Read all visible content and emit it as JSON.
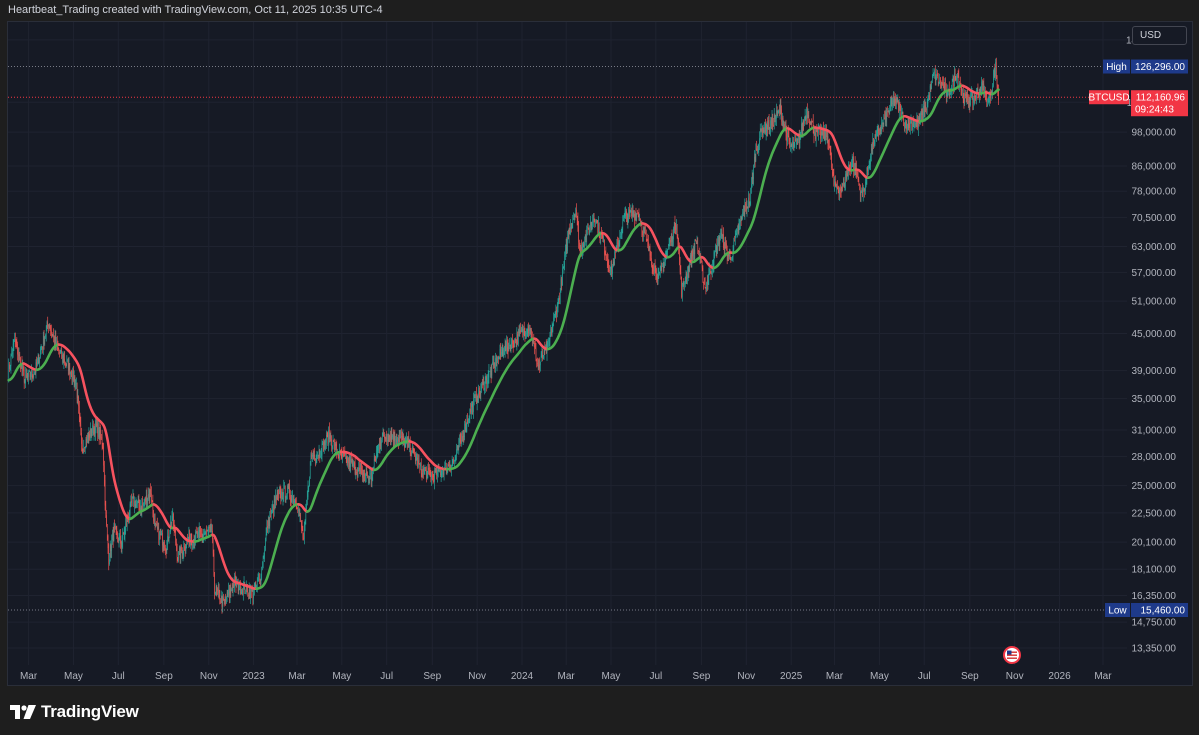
{
  "header": {
    "caption": "Heartbeat_Trading created with TradingView.com, Oct 11, 2025 10:35 UTC-4"
  },
  "toolbar": {
    "currency_label": "USD"
  },
  "brand": {
    "name": "TradingView",
    "icon": "tradingview-logo-icon"
  },
  "event_marker": {
    "icon": "us-flag-event-icon"
  },
  "colors": {
    "background": "#161a25",
    "up": "#26a69a",
    "down": "#ef5350",
    "ma_rising": "#4caf50",
    "ma_falling": "#f7525f",
    "last_price": "#f23645",
    "high_low_tag": "#1e3a8a"
  },
  "chart_data": {
    "type": "candlestick",
    "symbol": "BTCUSD",
    "y_scale": "log",
    "ylim": [
      12500,
      150000
    ],
    "xlim": [
      "2022-02-01",
      "2026-03-31"
    ],
    "grid": true,
    "y_ticks": [
      "140,000.00",
      "110,000.00",
      "98,000.00",
      "86,000.00",
      "78,000.00",
      "70,500.00",
      "63,000.00",
      "57,000.00",
      "51,000.00",
      "45,000.00",
      "39,000.00",
      "35,000.00",
      "31,000.00",
      "28,000.00",
      "25,000.00",
      "22,500.00",
      "20,100.00",
      "18,100.00",
      "16,350.00",
      "14,750.00",
      "13,350.00"
    ],
    "x_ticks": [
      {
        "date": "2022-03-01",
        "label": "Mar"
      },
      {
        "date": "2022-05-01",
        "label": "May"
      },
      {
        "date": "2022-07-01",
        "label": "Jul"
      },
      {
        "date": "2022-09-01",
        "label": "Sep"
      },
      {
        "date": "2022-11-01",
        "label": "Nov"
      },
      {
        "date": "2023-01-01",
        "label": "2023"
      },
      {
        "date": "2023-03-01",
        "label": "Mar"
      },
      {
        "date": "2023-05-01",
        "label": "May"
      },
      {
        "date": "2023-07-01",
        "label": "Jul"
      },
      {
        "date": "2023-09-01",
        "label": "Sep"
      },
      {
        "date": "2023-11-01",
        "label": "Nov"
      },
      {
        "date": "2024-01-01",
        "label": "2024"
      },
      {
        "date": "2024-03-01",
        "label": "Mar"
      },
      {
        "date": "2024-05-01",
        "label": "May"
      },
      {
        "date": "2024-07-01",
        "label": "Jul"
      },
      {
        "date": "2024-09-01",
        "label": "Sep"
      },
      {
        "date": "2024-11-01",
        "label": "Nov"
      },
      {
        "date": "2025-01-01",
        "label": "2025"
      },
      {
        "date": "2025-03-01",
        "label": "Mar"
      },
      {
        "date": "2025-05-01",
        "label": "May"
      },
      {
        "date": "2025-07-01",
        "label": "Jul"
      },
      {
        "date": "2025-09-01",
        "label": "Sep"
      },
      {
        "date": "2025-11-01",
        "label": "Nov"
      },
      {
        "date": "2026-01-01",
        "label": "2026"
      },
      {
        "date": "2026-03-01",
        "label": "Mar"
      }
    ],
    "high": {
      "label": "High",
      "value": "126,296.00",
      "price": 126296
    },
    "low": {
      "label": "Low",
      "value": "15,460.00",
      "price": 15460
    },
    "last": {
      "symbol": "BTCUSD",
      "value": "112,160.96",
      "price": 112160.96,
      "countdown": "09:24:43"
    },
    "price_path": [
      [
        "2022-02-01",
        38500
      ],
      [
        "2022-02-10",
        44000
      ],
      [
        "2022-02-24",
        37500
      ],
      [
        "2022-03-10",
        39000
      ],
      [
        "2022-03-28",
        47000
      ],
      [
        "2022-04-10",
        42000
      ],
      [
        "2022-04-25",
        39500
      ],
      [
        "2022-05-05",
        37000
      ],
      [
        "2022-05-12",
        29000
      ],
      [
        "2022-05-31",
        31500
      ],
      [
        "2022-06-10",
        29500
      ],
      [
        "2022-06-14",
        22000
      ],
      [
        "2022-06-18",
        18900
      ],
      [
        "2022-06-25",
        21000
      ],
      [
        "2022-07-05",
        20000
      ],
      [
        "2022-07-20",
        23500
      ],
      [
        "2022-08-01",
        23000
      ],
      [
        "2022-08-14",
        24500
      ],
      [
        "2022-08-20",
        21200
      ],
      [
        "2022-09-05",
        19800
      ],
      [
        "2022-09-12",
        22300
      ],
      [
        "2022-09-20",
        19000
      ],
      [
        "2022-10-05",
        20300
      ],
      [
        "2022-10-25",
        20700
      ],
      [
        "2022-11-05",
        21000
      ],
      [
        "2022-11-09",
        16800
      ],
      [
        "2022-11-21",
        15800
      ],
      [
        "2022-12-05",
        17100
      ],
      [
        "2022-12-31",
        16500
      ],
      [
        "2023-01-10",
        17400
      ],
      [
        "2023-01-20",
        21500
      ],
      [
        "2023-02-01",
        23800
      ],
      [
        "2023-02-15",
        24500
      ],
      [
        "2023-03-01",
        23500
      ],
      [
        "2023-03-10",
        20200
      ],
      [
        "2023-03-20",
        28000
      ],
      [
        "2023-04-01",
        28500
      ],
      [
        "2023-04-14",
        30400
      ],
      [
        "2023-04-25",
        28300
      ],
      [
        "2023-05-10",
        27500
      ],
      [
        "2023-05-25",
        26300
      ],
      [
        "2023-06-10",
        25800
      ],
      [
        "2023-06-22",
        30000
      ],
      [
        "2023-07-05",
        30400
      ],
      [
        "2023-07-15",
        30200
      ],
      [
        "2023-08-01",
        29200
      ],
      [
        "2023-08-17",
        26500
      ],
      [
        "2023-09-01",
        25900
      ],
      [
        "2023-09-15",
        26600
      ],
      [
        "2023-10-01",
        27500
      ],
      [
        "2023-10-23",
        33500
      ],
      [
        "2023-11-10",
        37000
      ],
      [
        "2023-12-05",
        42000
      ],
      [
        "2023-12-20",
        43500
      ],
      [
        "2024-01-11",
        46500
      ],
      [
        "2024-01-23",
        39500
      ],
      [
        "2024-02-05",
        42800
      ],
      [
        "2024-02-20",
        51500
      ],
      [
        "2024-03-05",
        67000
      ],
      [
        "2024-03-14",
        73000
      ],
      [
        "2024-03-20",
        62000
      ],
      [
        "2024-04-08",
        71000
      ],
      [
        "2024-04-20",
        64000
      ],
      [
        "2024-05-01",
        57000
      ],
      [
        "2024-05-20",
        71000
      ],
      [
        "2024-06-07",
        71500
      ],
      [
        "2024-06-25",
        60000
      ],
      [
        "2024-07-05",
        55500
      ],
      [
        "2024-07-29",
        69500
      ],
      [
        "2024-08-05",
        53000
      ],
      [
        "2024-08-25",
        64500
      ],
      [
        "2024-09-06",
        53500
      ],
      [
        "2024-09-27",
        66000
      ],
      [
        "2024-10-10",
        60000
      ],
      [
        "2024-10-29",
        72500
      ],
      [
        "2024-11-06",
        75500
      ],
      [
        "2024-11-13",
        90000
      ],
      [
        "2024-11-22",
        99000
      ],
      [
        "2024-12-05",
        101000
      ],
      [
        "2024-12-17",
        107000
      ],
      [
        "2024-12-30",
        92500
      ],
      [
        "2025-01-10",
        94000
      ],
      [
        "2025-01-22",
        106500
      ],
      [
        "2025-02-03",
        97500
      ],
      [
        "2025-02-20",
        96500
      ],
      [
        "2025-02-28",
        80000
      ],
      [
        "2025-03-10",
        78500
      ],
      [
        "2025-03-25",
        88000
      ],
      [
        "2025-04-08",
        76500
      ],
      [
        "2025-04-22",
        93500
      ],
      [
        "2025-05-10",
        104000
      ],
      [
        "2025-05-22",
        111000
      ],
      [
        "2025-06-05",
        101500
      ],
      [
        "2025-06-22",
        101000
      ],
      [
        "2025-07-05",
        109000
      ],
      [
        "2025-07-14",
        122500
      ],
      [
        "2025-07-25",
        118000
      ],
      [
        "2025-08-02",
        113000
      ],
      [
        "2025-08-14",
        123500
      ],
      [
        "2025-08-25",
        111000
      ],
      [
        "2025-09-05",
        111500
      ],
      [
        "2025-09-18",
        117000
      ],
      [
        "2025-09-26",
        109000
      ],
      [
        "2025-10-06",
        126000
      ],
      [
        "2025-10-10",
        112160
      ]
    ]
  }
}
